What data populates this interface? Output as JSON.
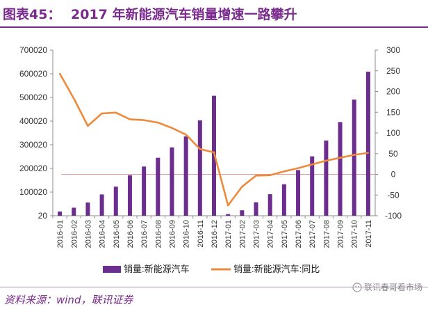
{
  "header": {
    "figure_label": "图表45：",
    "title": "2017 年新能源汽车销量增速一路攀升"
  },
  "footer": {
    "source": "资料来源：wind，联讯证券",
    "watermark": "联讯春哥看市场"
  },
  "colors": {
    "brand": "#7a2a8c",
    "bar": "#6b2d8e",
    "line": "#ee8a3c",
    "zero_line": "#e89a9a"
  },
  "chart_data": {
    "type": "bar",
    "title": "2017 年新能源汽车销量增速一路攀升",
    "categories": [
      "2016-01",
      "2016-02",
      "2016-03",
      "2016-04",
      "2016-05",
      "2016-06",
      "2016-07",
      "2016-08",
      "2016-09",
      "2016-10",
      "2016-11",
      "2016-12",
      "2017-01",
      "2017-02",
      "2017-03",
      "2017-04",
      "2017-05",
      "2017-06",
      "2017-07",
      "2017-08",
      "2017-09",
      "2017-10",
      "2017-11"
    ],
    "series": [
      {
        "name": "销量:新能源汽车",
        "type": "bar",
        "axis": "left",
        "values": [
          18000,
          34000,
          56000,
          90000,
          123000,
          171000,
          208000,
          245000,
          289000,
          335000,
          403000,
          507000,
          7000,
          23000,
          57000,
          91000,
          133000,
          193000,
          251000,
          318000,
          396000,
          491000,
          609000
        ]
      },
      {
        "name": "销量:新能源汽车:同比",
        "type": "line",
        "axis": "right",
        "values": [
          243,
          183,
          117,
          147,
          149,
          133,
          131,
          125,
          112,
          96,
          61,
          53,
          -75,
          -30,
          -3,
          -2,
          7,
          15,
          24,
          33,
          40,
          47,
          52
        ]
      }
    ],
    "y_left": {
      "min": 20,
      "max": 700020,
      "ticks": [
        "700020",
        "600020",
        "500020",
        "400020",
        "300020",
        "200020",
        "100020",
        "20"
      ]
    },
    "y_right": {
      "min": -100,
      "max": 300,
      "ticks": [
        "300",
        "250",
        "200",
        "150",
        "100",
        "50",
        "0",
        "-50",
        "-100"
      ]
    },
    "legend": {
      "placement": "bottom",
      "items": [
        "销量:新能源汽车",
        "销量:新能源汽车:同比"
      ]
    },
    "grid": false
  }
}
